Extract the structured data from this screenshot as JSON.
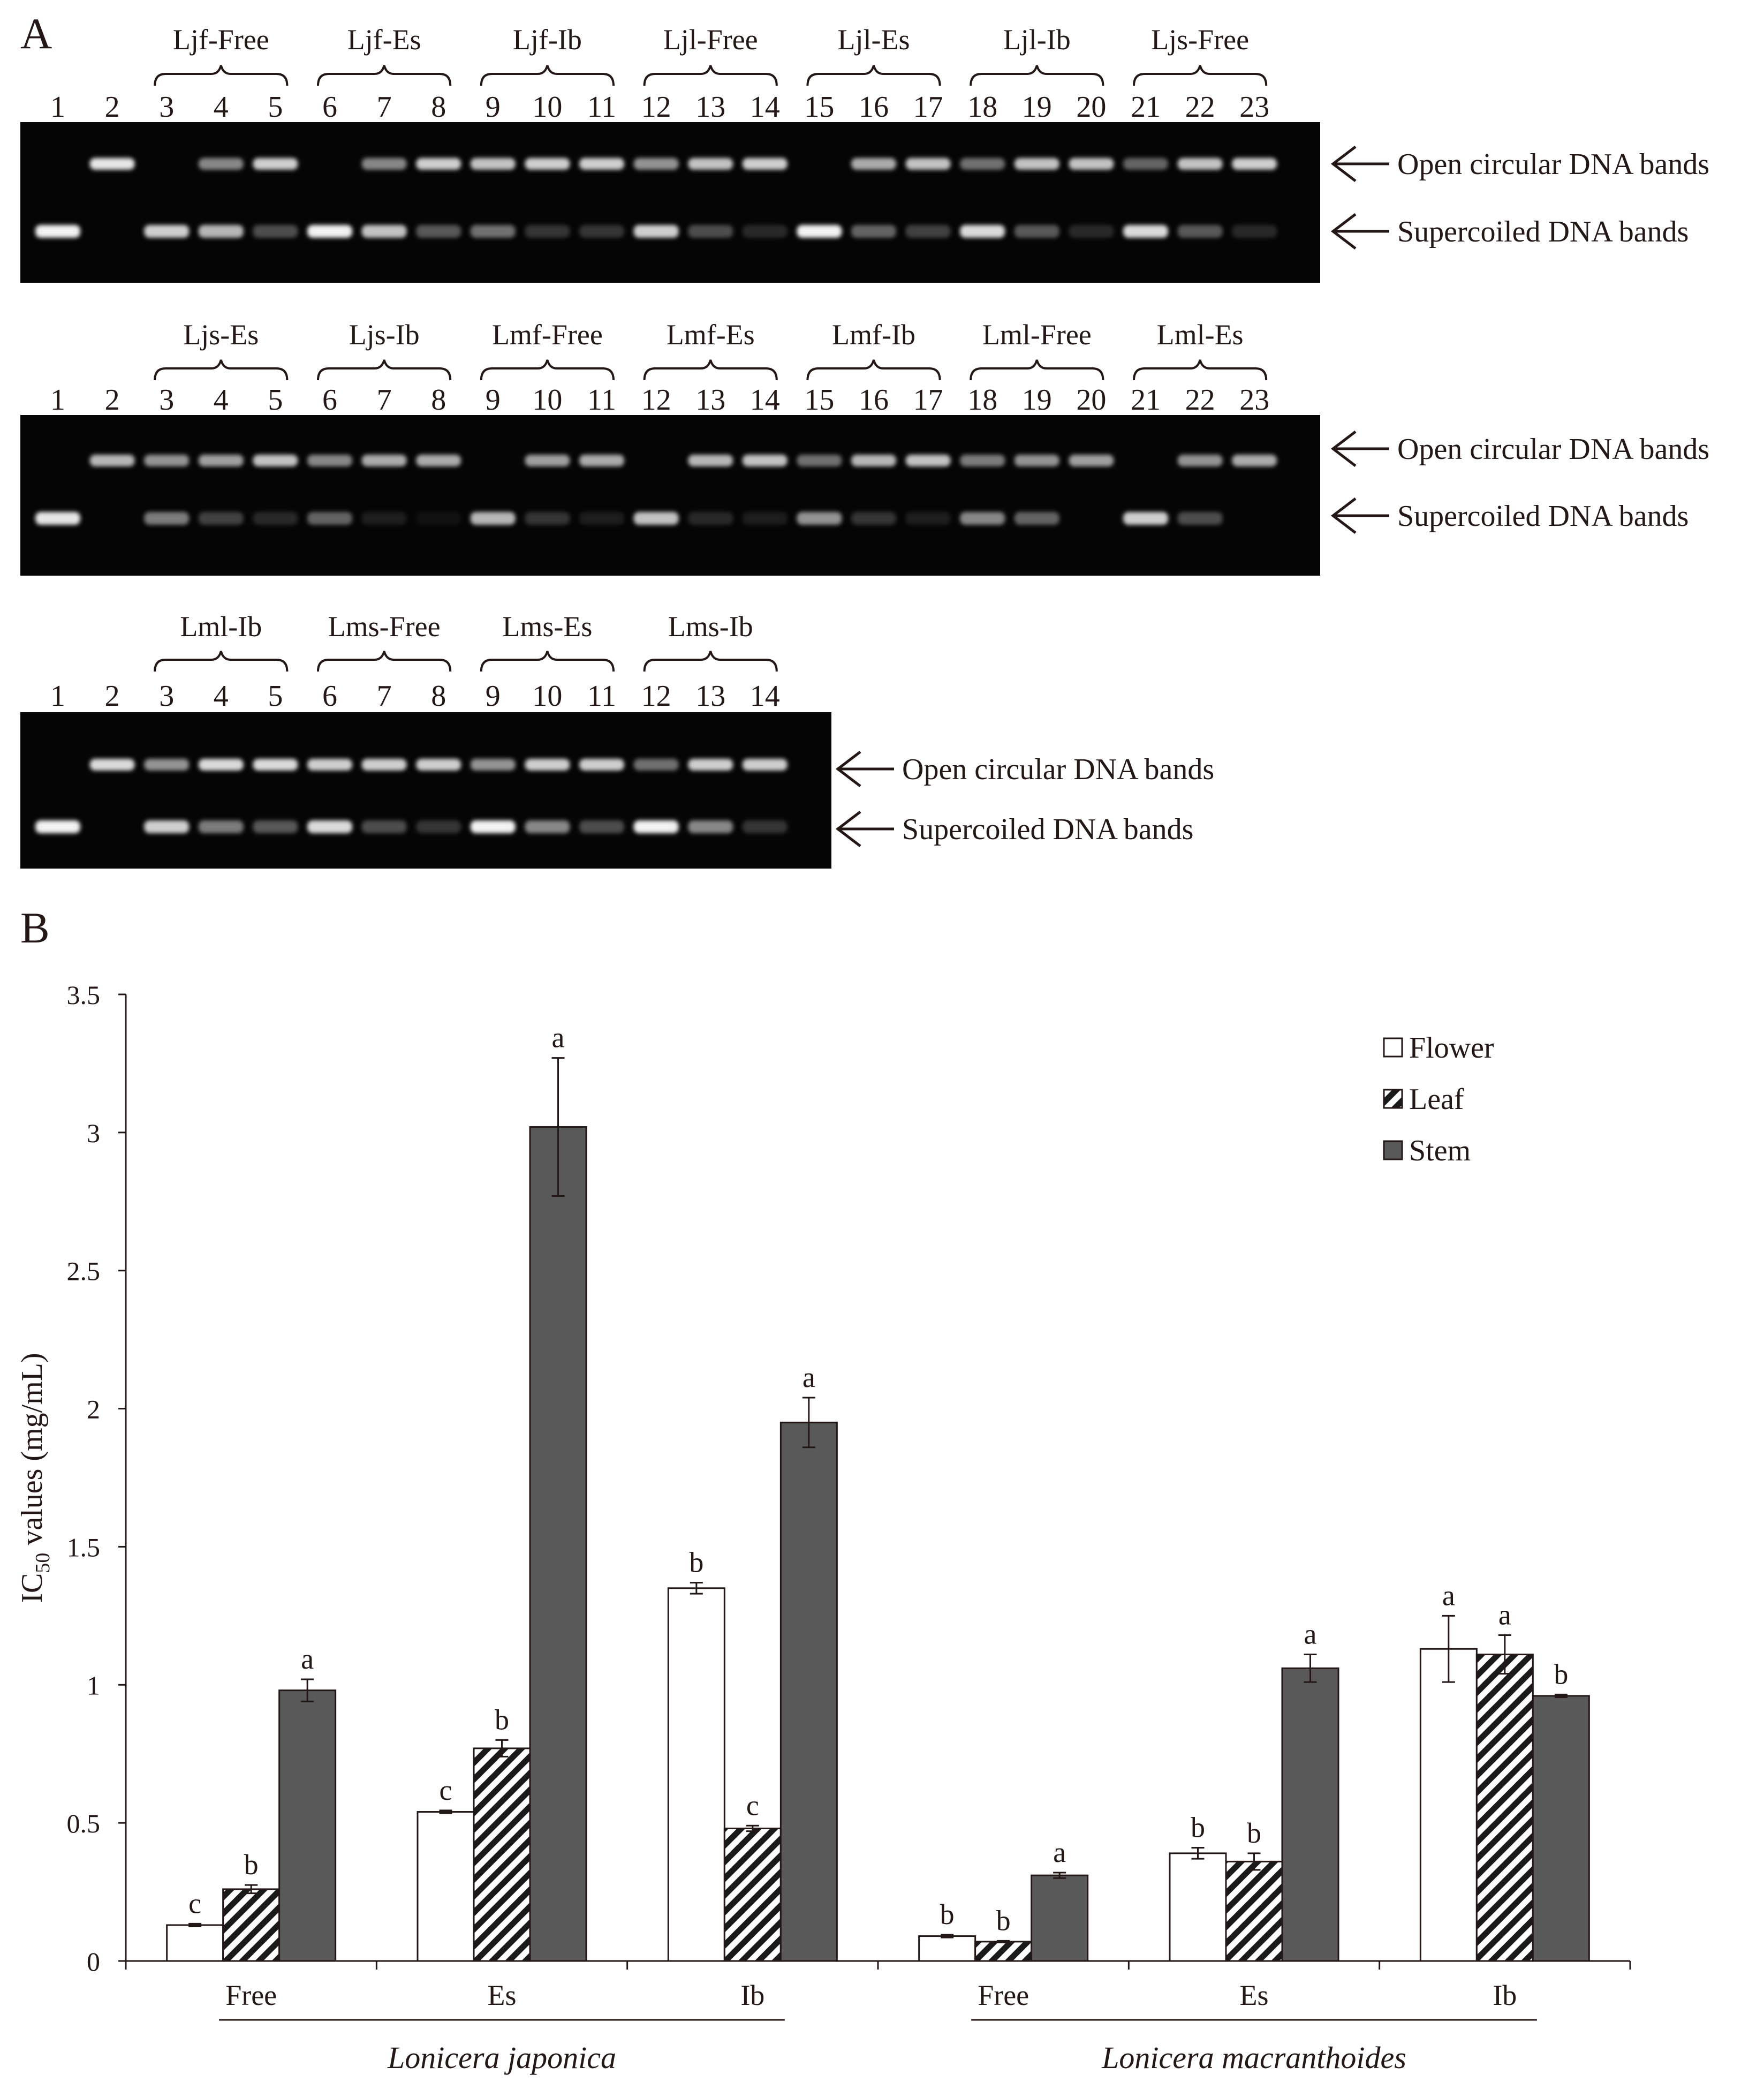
{
  "panel_a": {
    "label": "A",
    "lane_numbers": [
      "1",
      "2",
      "3",
      "4",
      "5",
      "6",
      "7",
      "8",
      "9",
      "10",
      "11",
      "12",
      "13",
      "14",
      "15",
      "16",
      "17",
      "18",
      "19",
      "20",
      "21",
      "22",
      "23"
    ],
    "band_labels": {
      "open": "Open circular DNA bands",
      "super": "Supercoiled DNA bands"
    },
    "gels": [
      {
        "lanes": 23,
        "groups": [
          "Ljf-Free",
          "Ljf-Es",
          "Ljf-Ib",
          "Ljl-Free",
          "Ljl-Es",
          "Ljl-Ib",
          "Ljs-Free"
        ],
        "open_intensity": [
          0,
          0.95,
          0,
          0.55,
          0.85,
          0,
          0.55,
          0.85,
          0.8,
          0.85,
          0.85,
          0.6,
          0.8,
          0.85,
          0,
          0.7,
          0.8,
          0.45,
          0.8,
          0.8,
          0.4,
          0.8,
          0.85
        ],
        "super_intensity": [
          1.0,
          0,
          0.85,
          0.75,
          0.3,
          1.0,
          0.8,
          0.35,
          0.45,
          0.2,
          0.2,
          0.85,
          0.3,
          0.15,
          1.0,
          0.4,
          0.25,
          0.9,
          0.35,
          0.15,
          0.9,
          0.35,
          0.15
        ]
      },
      {
        "lanes": 23,
        "groups": [
          "Ljs-Es",
          "Ljs-Ib",
          "Lmf-Free",
          "Lmf-Es",
          "Lmf-Ib",
          "Lml-Free",
          "Lml-Es"
        ],
        "open_intensity": [
          0,
          0.75,
          0.6,
          0.65,
          0.8,
          0.55,
          0.7,
          0.7,
          0,
          0.65,
          0.7,
          0,
          0.75,
          0.8,
          0.45,
          0.75,
          0.8,
          0.5,
          0.6,
          0.65,
          0,
          0.6,
          0.7
        ],
        "super_intensity": [
          0.95,
          0,
          0.5,
          0.25,
          0.15,
          0.4,
          0.1,
          0.05,
          0.75,
          0.2,
          0.1,
          0.8,
          0.15,
          0.1,
          0.6,
          0.2,
          0.1,
          0.55,
          0.4,
          0,
          0.85,
          0.3,
          0
        ]
      },
      {
        "lanes": 14,
        "groups": [
          "Lml-Ib",
          "Lms-Free",
          "Lms-Es",
          "Lms-Ib"
        ],
        "open_intensity": [
          0,
          0.9,
          0.6,
          0.9,
          0.9,
          0.85,
          0.85,
          0.85,
          0.6,
          0.85,
          0.85,
          0.45,
          0.85,
          0.85
        ],
        "super_intensity": [
          1.0,
          0,
          0.85,
          0.5,
          0.35,
          0.9,
          0.3,
          0.2,
          1.0,
          0.55,
          0.3,
          1.0,
          0.55,
          0.2
        ]
      }
    ]
  },
  "panel_b": {
    "label": "B"
  },
  "chart_data": {
    "type": "bar",
    "title": "",
    "ylabel": "IC50 values (mg/mL)",
    "ylabel_main": "IC",
    "ylabel_sub": "50",
    "ylabel_rest": " values (mg/mL)",
    "ylim": [
      0,
      3.5
    ],
    "yticks": [
      "0",
      "0.5",
      "1",
      "1.5",
      "2",
      "2.5",
      "3",
      "3.5"
    ],
    "ytick_values": [
      0,
      0.5,
      1,
      1.5,
      2,
      2.5,
      3,
      3.5
    ],
    "grid": false,
    "legend_position": "top-right",
    "categories": [
      "Free",
      "Es",
      "Ib",
      "Free",
      "Es",
      "Ib"
    ],
    "group_labels": [
      "Lonicera japonica",
      "Lonicera macranthoides"
    ],
    "series": [
      {
        "name": "Flower",
        "fill": "white",
        "values": [
          0.13,
          0.54,
          1.35,
          0.09,
          0.39,
          1.13
        ],
        "errors": [
          0.005,
          0.005,
          0.02,
          0.005,
          0.02,
          0.12
        ],
        "letters": [
          "c",
          "c",
          "b",
          "b",
          "b",
          "a"
        ]
      },
      {
        "name": "Leaf",
        "fill": "hatch",
        "values": [
          0.26,
          0.77,
          0.48,
          0.07,
          0.36,
          1.11
        ],
        "errors": [
          0.015,
          0.03,
          0.01,
          0.003,
          0.03,
          0.07
        ],
        "letters": [
          "b",
          "b",
          "c",
          "b",
          "b",
          "a"
        ]
      },
      {
        "name": "Stem",
        "fill": "dark",
        "values": [
          0.98,
          3.02,
          1.95,
          0.31,
          1.06,
          0.96
        ],
        "errors": [
          0.04,
          0.25,
          0.09,
          0.01,
          0.05,
          0.005
        ],
        "letters": [
          "a",
          "a",
          "a",
          "a",
          "a",
          "b"
        ]
      }
    ]
  },
  "colors": {
    "gel_bg": "#050505",
    "band": "#f2f2f2",
    "stem": "#595959",
    "hatch": "#1a1a1a",
    "text": "#231815"
  }
}
